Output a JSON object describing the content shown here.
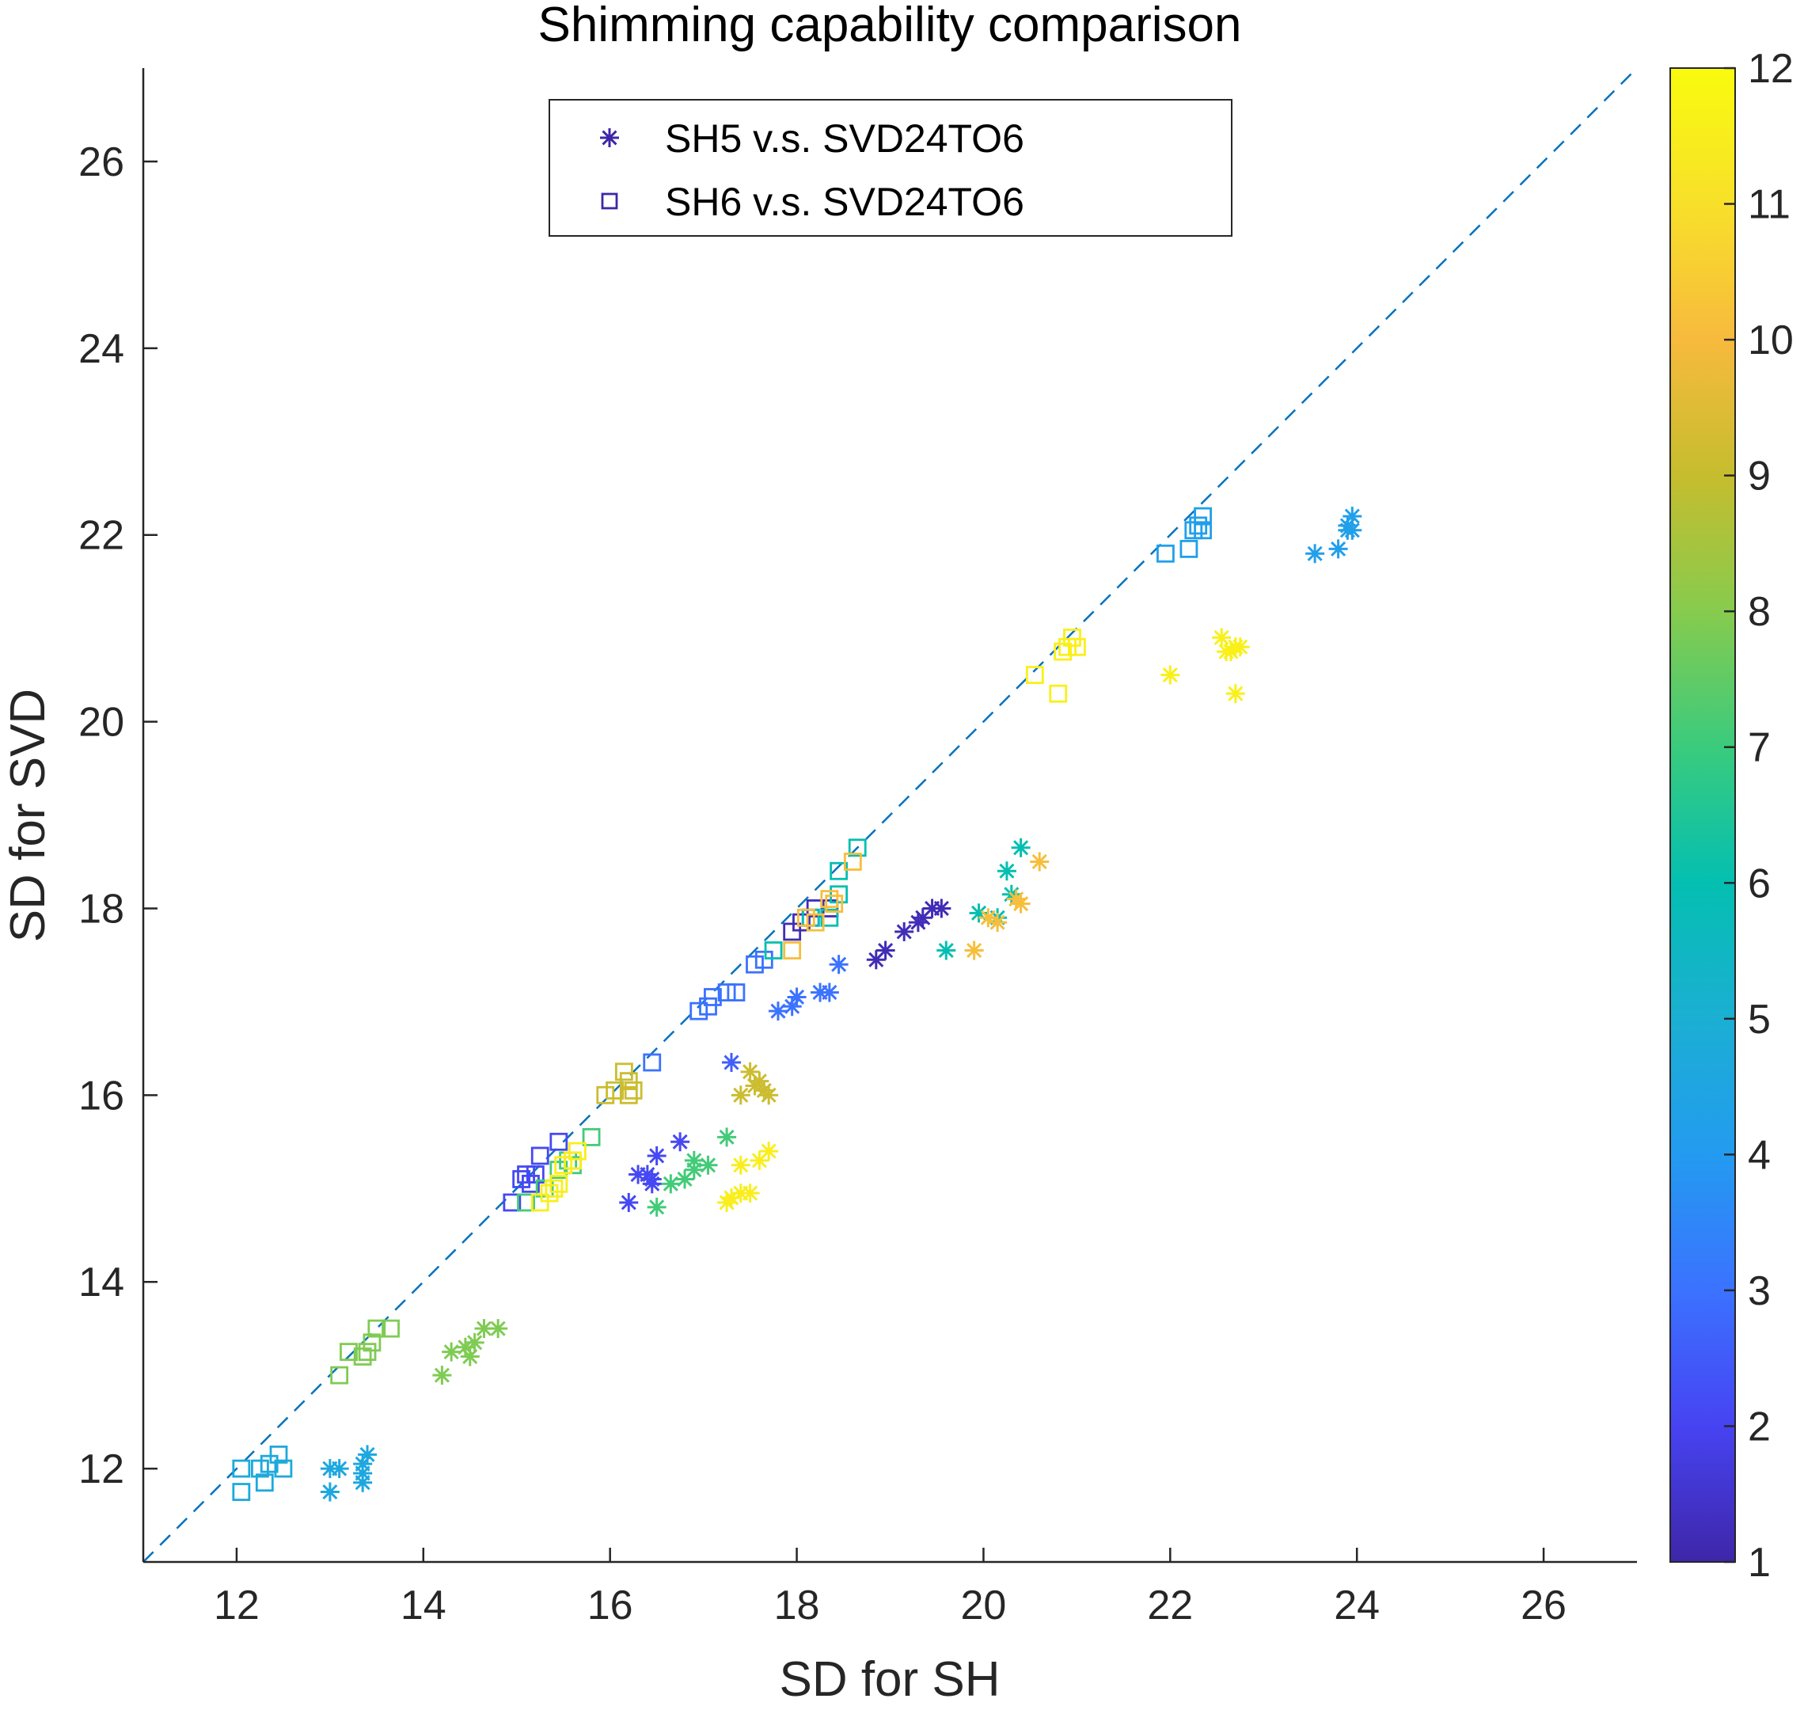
{
  "chart_data": {
    "type": "scatter",
    "title": "Shimming capability comparison",
    "xlabel": "SD for SH",
    "ylabel": "SD for SVD",
    "xlim": [
      11,
      27
    ],
    "ylim": [
      11,
      27
    ],
    "xticks": [
      "12",
      "14",
      "16",
      "18",
      "20",
      "22",
      "24",
      "26"
    ],
    "yticks": [
      "12",
      "14",
      "16",
      "18",
      "20",
      "22",
      "24",
      "26"
    ],
    "reference_line": {
      "style": "dashed",
      "from": [
        11,
        11
      ],
      "to": [
        27,
        27
      ],
      "color": "#0072BD"
    },
    "colorbar": {
      "min": 1,
      "max": 12,
      "ticks": [
        "1",
        "2",
        "3",
        "4",
        "5",
        "6",
        "7",
        "8",
        "9",
        "10",
        "11",
        "12"
      ],
      "colormap": "parula",
      "stops": [
        "#3E26A8",
        "#4743F2",
        "#3B72FF",
        "#239BF0",
        "#1BAFD3",
        "#04BFB1",
        "#3ACB7D",
        "#87CB4E",
        "#C6BD2E",
        "#F7BA3D",
        "#F8E02A",
        "#F9FB0E"
      ]
    },
    "legend": {
      "position": "top-center",
      "entries": [
        "SH5 v.s. SVD24TO6",
        "SH6 v.s. SVD24TO6"
      ],
      "marker_color": "#3E26A8"
    },
    "series": [
      {
        "name": "SH5 v.s. SVD24TO6",
        "marker": "asterisk",
        "points": [
          [
            13.0,
            12.0,
            4.6
          ],
          [
            13.1,
            12.0,
            4.6
          ],
          [
            13.0,
            11.75,
            4.6
          ],
          [
            13.35,
            12.05,
            4.6
          ],
          [
            13.4,
            12.15,
            4.6
          ],
          [
            13.35,
            11.95,
            4.6
          ],
          [
            13.35,
            11.85,
            4.6
          ],
          [
            14.2,
            13.0,
            7.9
          ],
          [
            14.3,
            13.25,
            7.9
          ],
          [
            14.45,
            13.3,
            7.9
          ],
          [
            14.5,
            13.2,
            7.9
          ],
          [
            14.55,
            13.35,
            7.9
          ],
          [
            14.65,
            13.5,
            7.9
          ],
          [
            14.8,
            13.5,
            7.9
          ],
          [
            16.2,
            14.85,
            2.1
          ],
          [
            16.3,
            15.15,
            2.1
          ],
          [
            16.4,
            15.15,
            2.1
          ],
          [
            16.45,
            15.05,
            2.1
          ],
          [
            16.45,
            15.1,
            2.1
          ],
          [
            16.5,
            15.35,
            2.1
          ],
          [
            16.75,
            15.5,
            2.1
          ],
          [
            16.5,
            14.8,
            7.1
          ],
          [
            16.65,
            15.05,
            7.1
          ],
          [
            16.8,
            15.1,
            7.1
          ],
          [
            16.9,
            15.2,
            7.1
          ],
          [
            16.9,
            15.3,
            7.1
          ],
          [
            17.05,
            15.25,
            7.1
          ],
          [
            17.25,
            15.55,
            7.1
          ],
          [
            17.25,
            14.85,
            11.5
          ],
          [
            17.3,
            14.9,
            11.5
          ],
          [
            17.4,
            14.95,
            11.5
          ],
          [
            17.5,
            14.95,
            11.5
          ],
          [
            17.4,
            15.25,
            11.5
          ],
          [
            17.6,
            15.3,
            11.5
          ],
          [
            17.7,
            15.4,
            11.5
          ],
          [
            17.3,
            16.35,
            2.6
          ],
          [
            17.8,
            16.9,
            3.0
          ],
          [
            17.95,
            16.95,
            3.0
          ],
          [
            18.0,
            17.05,
            3.0
          ],
          [
            18.25,
            17.1,
            3.0
          ],
          [
            18.35,
            17.1,
            3.0
          ],
          [
            18.45,
            17.4,
            3.0
          ],
          [
            17.4,
            16.0,
            9.1
          ],
          [
            17.5,
            16.25,
            9.1
          ],
          [
            17.6,
            16.15,
            9.1
          ],
          [
            17.65,
            16.05,
            9.1
          ],
          [
            17.7,
            16.0,
            9.1
          ],
          [
            17.55,
            16.1,
            9.1
          ],
          [
            18.85,
            17.45,
            1.2
          ],
          [
            18.95,
            17.55,
            1.2
          ],
          [
            19.15,
            17.75,
            1.2
          ],
          [
            19.3,
            17.85,
            1.2
          ],
          [
            19.35,
            17.9,
            1.2
          ],
          [
            19.45,
            18.0,
            1.2
          ],
          [
            19.55,
            18.0,
            1.2
          ],
          [
            19.6,
            17.55,
            6.0
          ],
          [
            19.95,
            17.95,
            6.0
          ],
          [
            20.15,
            17.9,
            6.0
          ],
          [
            20.25,
            18.4,
            6.0
          ],
          [
            20.3,
            18.15,
            6.0
          ],
          [
            20.4,
            18.65,
            6.0
          ],
          [
            19.9,
            17.55,
            10.1
          ],
          [
            20.05,
            17.9,
            10.1
          ],
          [
            20.15,
            17.85,
            10.1
          ],
          [
            20.35,
            18.1,
            10.1
          ],
          [
            20.4,
            18.05,
            10.1
          ],
          [
            20.6,
            18.5,
            10.1
          ],
          [
            22.0,
            20.5,
            11.6
          ],
          [
            22.55,
            20.9,
            11.6
          ],
          [
            22.6,
            20.75,
            11.6
          ],
          [
            22.65,
            20.75,
            11.6
          ],
          [
            22.7,
            20.8,
            11.6
          ],
          [
            22.75,
            20.8,
            11.6
          ],
          [
            22.7,
            20.3,
            11.6
          ],
          [
            23.55,
            21.8,
            4.2
          ],
          [
            23.8,
            21.85,
            4.2
          ],
          [
            23.9,
            22.1,
            4.2
          ],
          [
            23.9,
            22.05,
            4.2
          ],
          [
            23.95,
            22.2,
            4.2
          ],
          [
            23.95,
            22.05,
            4.2
          ]
        ]
      },
      {
        "name": "SH6 v.s. SVD24TO6",
        "marker": "square",
        "points": [
          [
            12.05,
            12.0,
            4.7
          ],
          [
            12.05,
            11.75,
            4.7
          ],
          [
            12.25,
            12.0,
            4.7
          ],
          [
            12.3,
            11.85,
            4.7
          ],
          [
            12.35,
            12.05,
            4.7
          ],
          [
            12.45,
            12.15,
            4.7
          ],
          [
            12.5,
            12.0,
            4.7
          ],
          [
            13.1,
            13.0,
            7.9
          ],
          [
            13.2,
            13.25,
            7.9
          ],
          [
            13.35,
            13.2,
            7.9
          ],
          [
            13.4,
            13.25,
            7.9
          ],
          [
            13.45,
            13.35,
            7.9
          ],
          [
            13.5,
            13.5,
            7.9
          ],
          [
            13.65,
            13.5,
            7.9
          ],
          [
            14.95,
            14.85,
            2.1
          ],
          [
            15.05,
            15.1,
            2.1
          ],
          [
            15.1,
            15.15,
            2.1
          ],
          [
            15.15,
            15.05,
            2.1
          ],
          [
            15.2,
            15.15,
            2.1
          ],
          [
            15.25,
            15.35,
            2.1
          ],
          [
            15.45,
            15.5,
            2.1
          ],
          [
            15.1,
            14.85,
            7.1
          ],
          [
            15.3,
            15.0,
            7.1
          ],
          [
            15.45,
            15.2,
            7.1
          ],
          [
            15.55,
            15.3,
            7.1
          ],
          [
            15.6,
            15.25,
            7.1
          ],
          [
            15.8,
            15.55,
            7.1
          ],
          [
            15.25,
            14.85,
            11.5
          ],
          [
            15.35,
            14.95,
            11.5
          ],
          [
            15.4,
            15.0,
            11.5
          ],
          [
            15.45,
            15.05,
            11.5
          ],
          [
            15.5,
            15.25,
            11.5
          ],
          [
            15.6,
            15.3,
            11.5
          ],
          [
            15.65,
            15.4,
            11.5
          ],
          [
            16.45,
            16.35,
            3.0
          ],
          [
            16.95,
            16.9,
            3.0
          ],
          [
            17.05,
            16.95,
            3.0
          ],
          [
            17.1,
            17.05,
            3.0
          ],
          [
            17.25,
            17.1,
            3.0
          ],
          [
            17.35,
            17.1,
            3.0
          ],
          [
            17.55,
            17.4,
            3.0
          ],
          [
            17.65,
            17.45,
            3.0
          ],
          [
            15.95,
            16.0,
            9.1
          ],
          [
            16.05,
            16.05,
            9.1
          ],
          [
            16.15,
            16.25,
            9.1
          ],
          [
            16.2,
            16.15,
            9.1
          ],
          [
            16.25,
            16.05,
            9.1
          ],
          [
            16.2,
            16.0,
            9.1
          ],
          [
            17.95,
            17.75,
            1.2
          ],
          [
            18.05,
            17.85,
            1.2
          ],
          [
            18.15,
            17.9,
            1.2
          ],
          [
            18.2,
            18.0,
            1.2
          ],
          [
            18.35,
            18.0,
            1.2
          ],
          [
            17.75,
            17.55,
            6.0
          ],
          [
            18.15,
            17.9,
            6.0
          ],
          [
            18.35,
            17.9,
            6.0
          ],
          [
            18.45,
            18.4,
            6.0
          ],
          [
            18.45,
            18.15,
            6.0
          ],
          [
            18.65,
            18.65,
            6.0
          ],
          [
            17.95,
            17.55,
            10.1
          ],
          [
            18.1,
            17.9,
            10.1
          ],
          [
            18.2,
            17.85,
            10.1
          ],
          [
            18.35,
            18.1,
            10.1
          ],
          [
            18.4,
            18.05,
            10.1
          ],
          [
            18.6,
            18.5,
            10.1
          ],
          [
            20.55,
            20.5,
            11.6
          ],
          [
            20.8,
            20.3,
            11.6
          ],
          [
            20.85,
            20.75,
            11.6
          ],
          [
            20.9,
            20.8,
            11.6
          ],
          [
            20.95,
            20.9,
            11.6
          ],
          [
            21.0,
            20.8,
            11.6
          ],
          [
            21.95,
            21.8,
            4.2
          ],
          [
            22.2,
            21.85,
            4.2
          ],
          [
            22.25,
            22.05,
            4.2
          ],
          [
            22.3,
            22.1,
            4.2
          ],
          [
            22.35,
            22.2,
            4.2
          ],
          [
            22.35,
            22.05,
            4.2
          ]
        ]
      }
    ]
  }
}
